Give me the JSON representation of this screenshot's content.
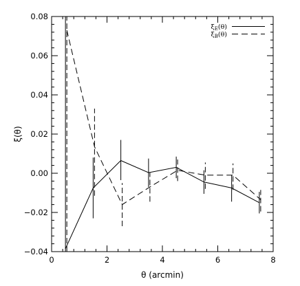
{
  "chart_data": {
    "type": "line",
    "xlabel": "θ (arcmin)",
    "ylabel": "ξ(θ)",
    "xlim": [
      0,
      8
    ],
    "ylim": [
      -0.04,
      0.08
    ],
    "x_ticks": [
      "0",
      "2",
      "4",
      "6",
      "8"
    ],
    "y_ticks": [
      "−0.04",
      "−0.02",
      "0.00",
      "0.02",
      "0.04",
      "0.06",
      "0.08"
    ],
    "grid": false,
    "legend_position": "top-right",
    "series": [
      {
        "name": "ξE(θ)",
        "legend_main": "ξ",
        "legend_sub": "E",
        "legend_suffix": "(θ)",
        "style": "solid",
        "x": [
          0.5,
          1.5,
          2.5,
          3.5,
          4.5,
          5.5,
          6.5,
          7.5
        ],
        "y": [
          -0.0385,
          -0.0075,
          0.0065,
          0.0003,
          0.003,
          -0.0045,
          -0.0075,
          -0.015
        ],
        "err_low": [
          -0.04,
          -0.023,
          -0.0035,
          -0.007,
          -0.0025,
          -0.0105,
          -0.0145,
          -0.0205
        ],
        "err_high": [
          0.08,
          0.008,
          0.017,
          0.0075,
          0.0085,
          0.0015,
          -0.001,
          -0.0095
        ]
      },
      {
        "name": "ξB(θ)",
        "legend_main": "ξ",
        "legend_sub": "B",
        "legend_suffix": "(θ)",
        "style": "dashed",
        "x": [
          0.55,
          1.55,
          2.55,
          3.55,
          4.55,
          5.55,
          6.55,
          7.55
        ],
        "y": [
          0.073,
          0.0135,
          -0.016,
          -0.007,
          0.0015,
          -0.001,
          -0.001,
          -0.0135
        ],
        "err_low": [
          -0.04,
          -0.0115,
          -0.027,
          -0.0145,
          -0.004,
          -0.008,
          -0.0085,
          -0.0195
        ],
        "err_high": [
          0.08,
          0.033,
          -0.005,
          0.0005,
          0.007,
          0.0055,
          0.005,
          -0.0085
        ]
      }
    ]
  }
}
